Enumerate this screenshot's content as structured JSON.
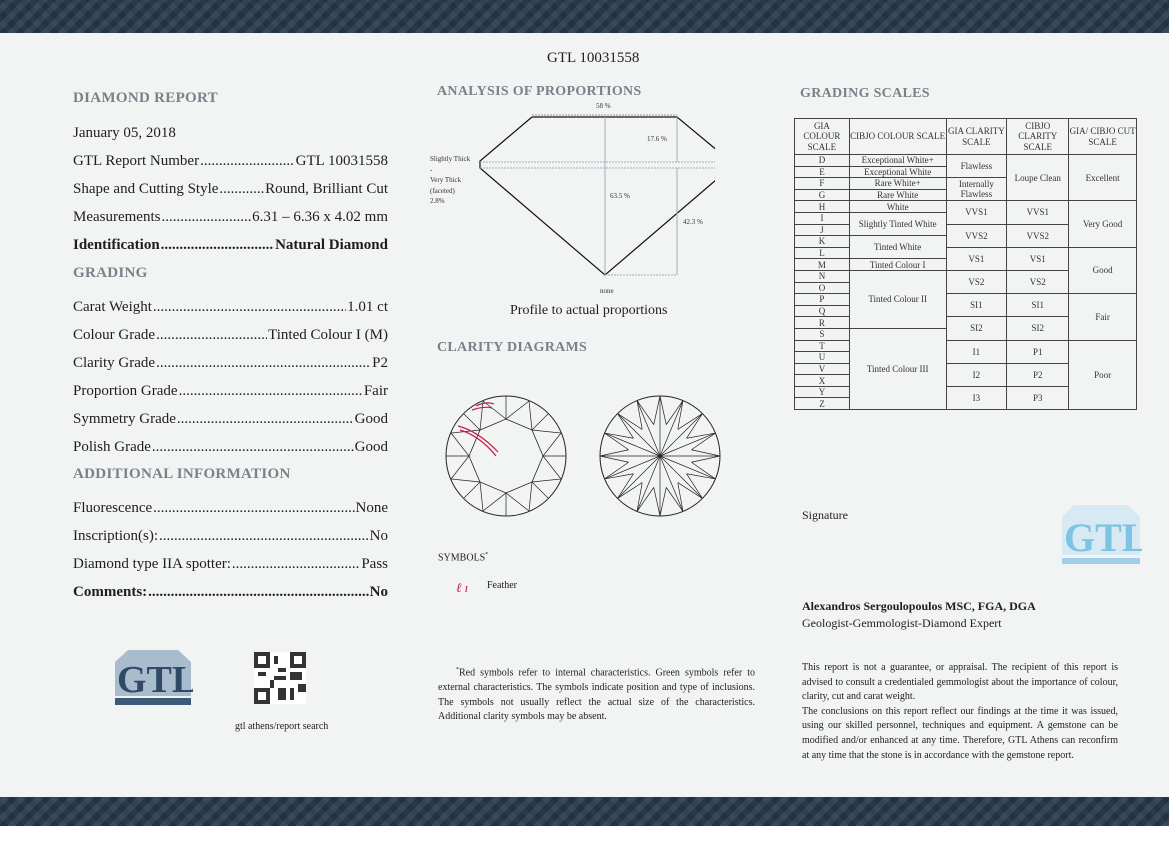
{
  "report_number": "GTL 10031558",
  "left": {
    "title": "DIAMOND REPORT",
    "date": "January 05, 2018",
    "details": [
      {
        "label": "GTL Report Number",
        "value": "GTL 10031558"
      },
      {
        "label": "Shape and Cutting Style",
        "value": "Round, Brilliant Cut"
      },
      {
        "label": "Measurements",
        "value": "6.31 – 6.36 x 4.02 mm"
      },
      {
        "label": "Identification",
        "value": "Natural Diamond"
      }
    ],
    "grading_title": "GRADING",
    "grading": [
      {
        "label": "Carat Weight",
        "value": "1.01 ct"
      },
      {
        "label": "Colour Grade",
        "value": "Tinted Colour I (M)"
      },
      {
        "label": "Clarity Grade",
        "value": "P2"
      },
      {
        "label": "Proportion Grade",
        "value": "Fair"
      },
      {
        "label": "Symmetry Grade",
        "value": "Good"
      },
      {
        "label": "Polish Grade",
        "value": "Good"
      }
    ],
    "additional_title": "ADDITIONAL INFORMATION",
    "additional": [
      {
        "label": "Fluorescence",
        "value": "None"
      },
      {
        "label": "Inscription(s):",
        "value": "No"
      },
      {
        "label": "Diamond type IIA spotter:",
        "value": "Pass"
      },
      {
        "label": "Comments:",
        "value": "No"
      }
    ],
    "logo_text": "GTL athens Gem Testing Laboratory",
    "qr_caption": "gtl athens/report search"
  },
  "middle": {
    "proportions_title": "ANALYSIS OF PROPORTIONS",
    "table_pct": "58 %",
    "crown_pct": "17.6 %",
    "depth_pct": "63.5 %",
    "pavilion_pct": "42.3 %",
    "girdle": [
      "Slightly Thick",
      "-",
      "Very Thick",
      "(faceted)",
      "2.8%"
    ],
    "culet": "none",
    "profile_caption": "Profile to actual proportions",
    "clarity_title": "CLARITY DIAGRAMS",
    "symbols_title": "SYMBOLS",
    "symbols_sup": "*",
    "symbol_feather": "Feather",
    "symbol_mark_color": "#c0204a",
    "footnote": "Red symbols refer to internal characteristics. Green symbols refer to external characteristics. The symbols indicate position and type of inclusions. The symbols not usually reflect the actual size of the characteristics. Additional clarity symbols may be absent."
  },
  "right": {
    "scales_title": "GRADING SCALES",
    "headers": [
      "GIA COLOUR SCALE",
      "CIBJO COLOUR SCALE",
      "GIA CLARITY SCALE",
      "CIBJO CLARITY SCALE",
      "GIA/ CIBJO CUT SCALE"
    ],
    "gia_colour": [
      "D",
      "E",
      "F",
      "G",
      "H",
      "I",
      "J",
      "K",
      "L",
      "M",
      "N",
      "O",
      "P",
      "Q",
      "R",
      "S",
      "T",
      "U",
      "V",
      "X",
      "Y",
      "Z"
    ],
    "cibjo_colour": [
      "Exceptional White+",
      "Exceptional White",
      "Rare White+",
      "Rare White",
      "White",
      "Slightly Tinted White",
      "Tinted White",
      "Tinted Colour I",
      "Tinted Colour II",
      "Tinted Colour III"
    ],
    "gia_clarity": [
      "Flawless",
      "Internally Flawless",
      "VVS1",
      "VVS2",
      "VS1",
      "VS2",
      "SI1",
      "SI2",
      "I1",
      "I2",
      "I3"
    ],
    "cibjo_clarity": [
      "Loupe Clean",
      "VVS1",
      "VVS2",
      "VS1",
      "VS2",
      "SI1",
      "SI2",
      "P1",
      "P2",
      "P3"
    ],
    "cut": [
      "Excellent",
      "Very Good",
      "Good",
      "Fair",
      "Poor"
    ],
    "signature_label": "Signature",
    "signer_name": "Alexandros Sergoulopoulos MSC, FGA, DGA",
    "signer_title": "Geologist-Gemmologist-Diamond Expert",
    "disclaimer1": "This report is not a guarantee, or appraisal. The recipient of this report is advised to consult a credentialed gemmologist about the importance of colour, clarity, cut and carat weight.",
    "disclaimer2": "The conclusions on this report reflect our findings at the time it was issued, using our skilled personnel, techniques and equipment. A gemstone can be modified and/or enhanced at any time. Therefore, GTL Athens can reconfirm at any time that the stone is in accordance with the gemstone report."
  },
  "colors": {
    "band": "#5d7083",
    "heading": "#7b8089",
    "logo": "#3d5a78"
  }
}
